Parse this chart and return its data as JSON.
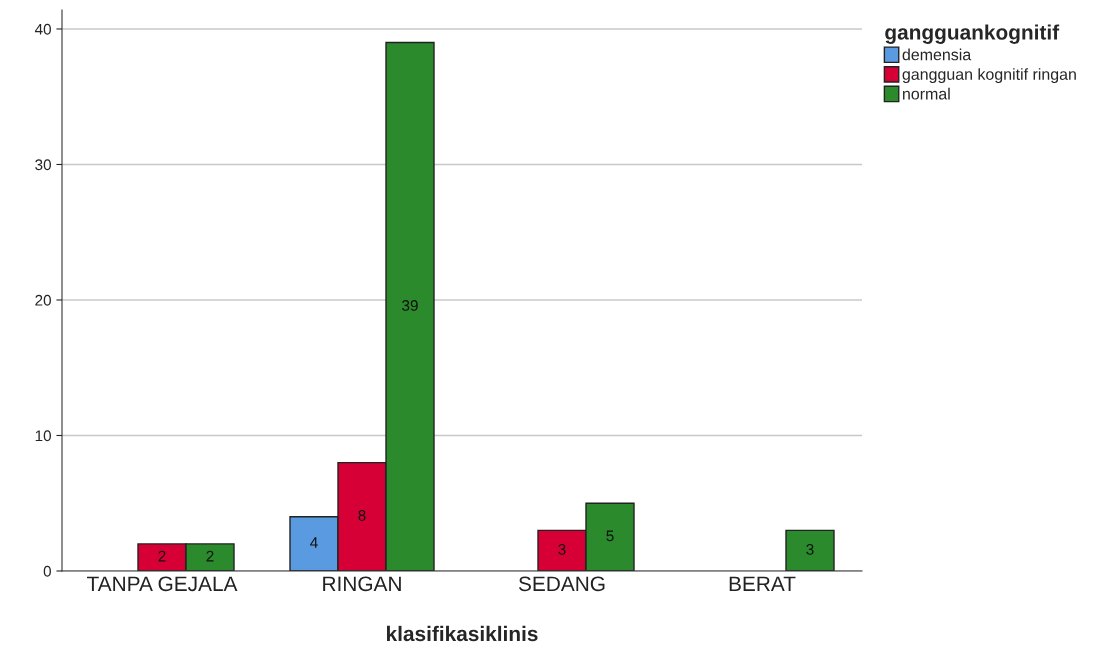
{
  "chart_data": {
    "type": "bar",
    "xlabel": "klasifikasiklinis",
    "legend_title": "gangguankognitif",
    "categories": [
      "TANPA GEJALA",
      "RINGAN",
      "SEDANG",
      "BERAT"
    ],
    "series": [
      {
        "name": "demensia",
        "color": "#5a9ae0",
        "values": [
          null,
          4,
          null,
          null
        ]
      },
      {
        "name": "gangguan kognitif ringan",
        "color": "#d60036",
        "values": [
          2,
          8,
          3,
          null
        ]
      },
      {
        "name": "normal",
        "color": "#2b8a2b",
        "values": [
          2,
          39,
          5,
          3
        ]
      }
    ],
    "ylim": [
      0,
      41.4
    ],
    "yticks": [
      0,
      10,
      20,
      30,
      40
    ],
    "grid": "y",
    "legend": "top right",
    "data_labels": true
  }
}
